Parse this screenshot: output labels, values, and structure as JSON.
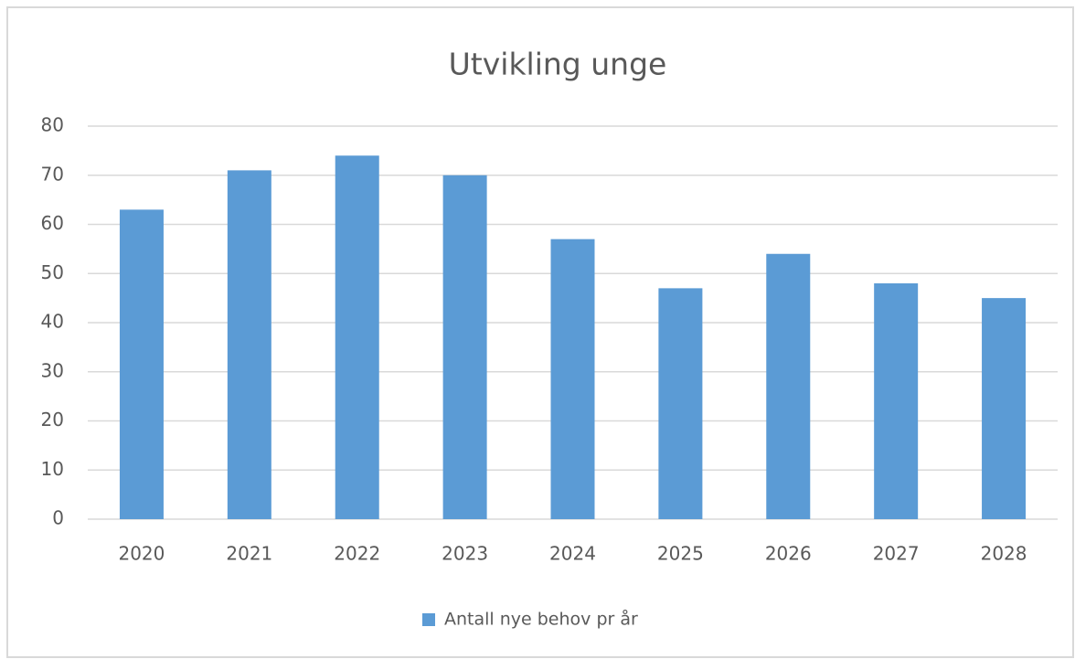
{
  "chart_data": {
    "type": "bar",
    "title": "Utvikling unge",
    "categories": [
      "2020",
      "2021",
      "2022",
      "2023",
      "2024",
      "2025",
      "2026",
      "2027",
      "2028"
    ],
    "series": [
      {
        "name": "Antall nye behov pr år",
        "color": "#5b9bd5",
        "values": [
          63,
          71,
          74,
          70,
          57,
          47,
          54,
          48,
          45
        ]
      }
    ],
    "ylim": [
      0,
      80
    ],
    "yticks": [
      0,
      10,
      20,
      30,
      40,
      50,
      60,
      70,
      80
    ],
    "grid": true,
    "legend": "bottom"
  }
}
